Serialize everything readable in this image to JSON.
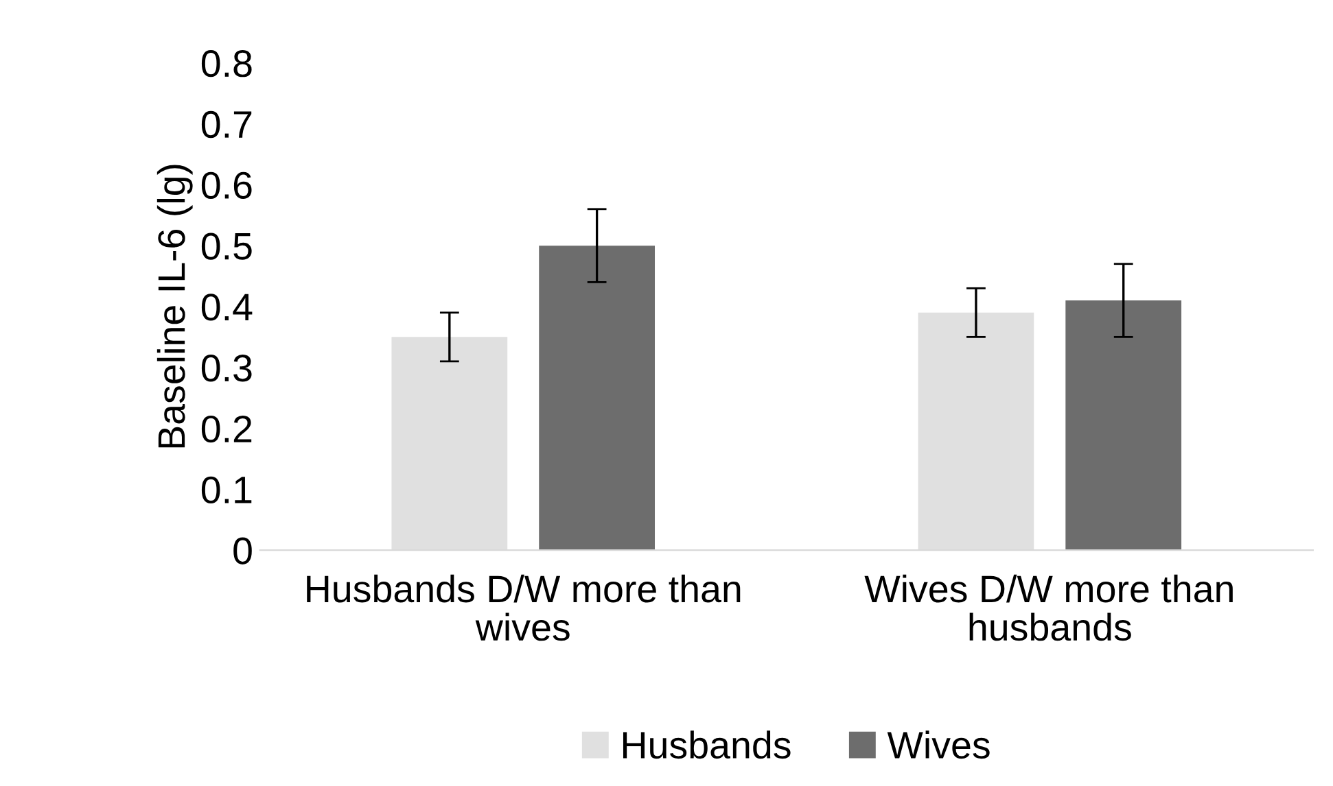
{
  "chart_data": {
    "type": "bar",
    "ylabel": "Baseline IL-6 (lg)",
    "categories": [
      "Husbands D/W more than wives",
      "Wives D/W more than husbands"
    ],
    "series": [
      {
        "name": "Husbands",
        "color": "#e0e0e0",
        "values": [
          0.35,
          0.39
        ],
        "errors": [
          [
            0.31,
            0.39
          ],
          [
            0.35,
            0.43
          ]
        ]
      },
      {
        "name": "Wives",
        "color": "#6d6d6d",
        "values": [
          0.5,
          0.41
        ],
        "errors": [
          [
            0.44,
            0.56
          ],
          [
            0.35,
            0.47
          ]
        ]
      }
    ],
    "ylim": [
      0,
      0.8
    ],
    "yticks": [
      0,
      0.1,
      0.2,
      0.3,
      0.4,
      0.5,
      0.6,
      0.7,
      0.8
    ],
    "grid": false,
    "legend": "bottom"
  }
}
